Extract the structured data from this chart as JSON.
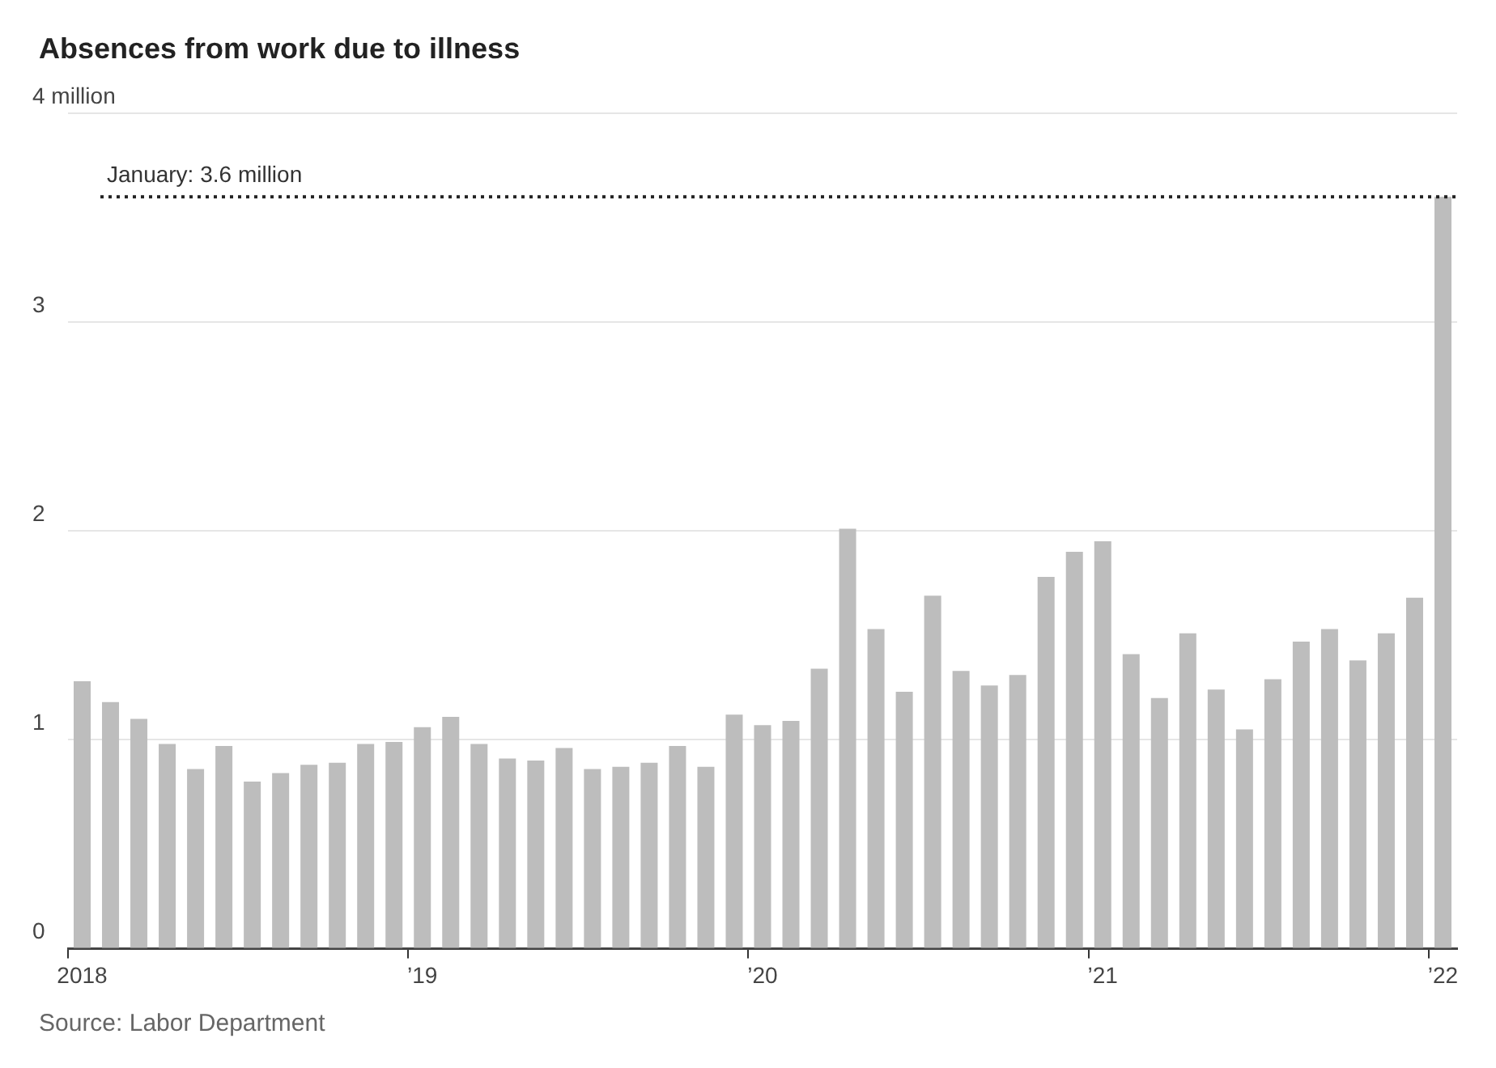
{
  "chart_data": {
    "type": "bar",
    "title": "Absences from work due to illness",
    "categories": [
      "2018",
      null,
      null,
      null,
      null,
      null,
      null,
      null,
      null,
      null,
      null,
      null,
      "’19",
      null,
      null,
      null,
      null,
      null,
      null,
      null,
      null,
      null,
      null,
      null,
      "’20",
      null,
      null,
      null,
      null,
      null,
      null,
      null,
      null,
      null,
      null,
      null,
      "’21",
      null,
      null,
      null,
      null,
      null,
      null,
      null,
      null,
      null,
      null,
      null,
      "’22"
    ],
    "values": [
      1.28,
      1.18,
      1.1,
      0.98,
      0.86,
      0.97,
      0.8,
      0.84,
      0.88,
      0.89,
      0.98,
      0.99,
      1.06,
      1.11,
      0.98,
      0.91,
      0.9,
      0.96,
      0.86,
      0.87,
      0.89,
      0.97,
      0.87,
      1.12,
      1.07,
      1.09,
      1.34,
      2.01,
      1.53,
      1.23,
      1.69,
      1.33,
      1.26,
      1.31,
      1.78,
      1.9,
      1.95,
      1.41,
      1.2,
      1.51,
      1.24,
      1.05,
      1.29,
      1.47,
      1.53,
      1.38,
      1.51,
      1.68,
      3.6
    ],
    "color": "#bdbdbd",
    "ylim": [
      0,
      4
    ],
    "yticks": [
      0,
      1,
      2,
      3,
      {
        "value": 4,
        "label": "4 million"
      }
    ],
    "grid": "y",
    "ref_lines": [
      {
        "axis": "y",
        "value": 3.6,
        "label": "January: 3.6 million",
        "color": "#222222",
        "line_style": "dotted"
      }
    ],
    "annotations": [
      "Source: Labor Department"
    ]
  }
}
